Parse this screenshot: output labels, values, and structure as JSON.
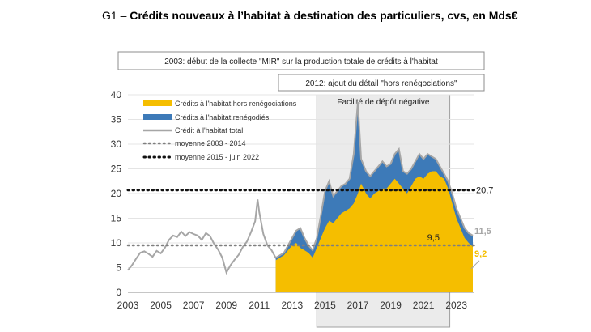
{
  "chart_data": {
    "type": "area",
    "title_prefix": "G1 – ",
    "title_main": "Crédits nouveaux à l’habitat à destination des particuliers, cvs, en Mds€",
    "ylim": [
      0,
      40
    ],
    "yticks": [
      "0",
      "5",
      "10",
      "15",
      "20",
      "25",
      "30",
      "35",
      "40"
    ],
    "xlim": [
      2003,
      2024.1
    ],
    "xticks": [
      "2003",
      "2005",
      "2007",
      "2009",
      "2011",
      "2013",
      "2015",
      "2017",
      "2019",
      "2021",
      "2023"
    ],
    "legend": {
      "hors_reneg": "Crédits à l'habitat hors renégociations",
      "reneg": "Crédits à l'habitat renégodiés",
      "total": "Crédit à l'habitat total",
      "avg1": "moyenne 2003 - 2014",
      "avg2": "moyenne 2015 - juin 2022"
    },
    "annotations": {
      "mir": "2003: début de la collecte \"MIR\" sur la production totale de crédits à l'habitat",
      "detail": "2012: ajout du détail \"hors renégociations\"",
      "facilite": "Facilité de dépôt négative"
    },
    "shade_range": [
      2014.5,
      2022.6
    ],
    "averages": {
      "avg_2003_2014": 9.5,
      "avg_2015_2022": 20.7
    },
    "value_labels": {
      "avg1": "9,5",
      "avg2": "20,7",
      "last_total": "11,5",
      "last_hors": "9,2"
    },
    "colors": {
      "hors": "#f5be00",
      "reneg": "#3d7ab8",
      "total": "#a6a6a6",
      "avg1": "#7f7f7f",
      "avg2": "#111111",
      "last_hors": "#f5be00",
      "last_total": "#a6a6a6"
    },
    "series_total_pre2012": {
      "x": [
        2003.0,
        2003.25,
        2003.5,
        2003.75,
        2004.0,
        2004.25,
        2004.5,
        2004.75,
        2005.0,
        2005.25,
        2005.5,
        2005.75,
        2006.0,
        2006.25,
        2006.5,
        2006.75,
        2007.0,
        2007.25,
        2007.5,
        2007.75,
        2008.0,
        2008.25,
        2008.5,
        2008.75,
        2009.0,
        2009.25,
        2009.5,
        2009.75,
        2010.0,
        2010.25,
        2010.5,
        2010.75,
        2010.9,
        2011.0,
        2011.25,
        2011.5,
        2011.75,
        2012.0
      ],
      "y": [
        4.5,
        5.5,
        6.8,
        8.0,
        8.3,
        7.8,
        7.2,
        8.4,
        7.9,
        9.0,
        10.6,
        11.5,
        11.2,
        12.3,
        11.4,
        12.2,
        11.8,
        11.5,
        10.6,
        12.0,
        11.4,
        9.8,
        8.6,
        7.0,
        4.0,
        5.5,
        6.6,
        7.6,
        9.2,
        10.3,
        12.2,
        14.4,
        18.8,
        16.2,
        11.8,
        9.5,
        8.5,
        7.0
      ]
    },
    "series_stacked": {
      "x": [
        2012.0,
        2012.25,
        2012.5,
        2012.75,
        2013.0,
        2013.25,
        2013.5,
        2013.75,
        2014.0,
        2014.25,
        2014.5,
        2014.75,
        2015.0,
        2015.25,
        2015.5,
        2015.75,
        2016.0,
        2016.25,
        2016.5,
        2016.75,
        2017.0,
        2017.2,
        2017.5,
        2017.75,
        2018.0,
        2018.25,
        2018.5,
        2018.75,
        2019.0,
        2019.25,
        2019.5,
        2019.75,
        2020.0,
        2020.25,
        2020.5,
        2020.75,
        2021.0,
        2021.25,
        2021.5,
        2021.75,
        2022.0,
        2022.25,
        2022.5,
        2022.75,
        2023.0,
        2023.25,
        2023.5,
        2023.75,
        2024.0
      ],
      "hors": [
        6.5,
        7.0,
        7.5,
        8.5,
        9.5,
        10.0,
        9.0,
        8.5,
        8.0,
        7.0,
        9.0,
        11.0,
        13.0,
        14.5,
        14.0,
        15.0,
        16.0,
        16.5,
        17.0,
        18.0,
        20.0,
        22.0,
        20.0,
        19.0,
        20.0,
        20.5,
        21.0,
        21.0,
        22.0,
        23.0,
        22.0,
        21.0,
        20.0,
        21.5,
        23.0,
        23.5,
        23.0,
        24.0,
        24.5,
        24.5,
        23.5,
        23.0,
        21.0,
        18.0,
        15.0,
        13.0,
        11.0,
        10.0,
        9.2
      ],
      "total": [
        7.0,
        7.5,
        8.0,
        9.5,
        11.0,
        12.5,
        13.0,
        11.0,
        9.5,
        8.5,
        11.0,
        15.5,
        20.5,
        22.5,
        19.5,
        20.5,
        21.5,
        22.0,
        23.0,
        28.0,
        38.5,
        27.0,
        24.5,
        23.5,
        24.5,
        25.5,
        26.5,
        25.5,
        26.0,
        28.0,
        29.0,
        24.5,
        24.0,
        25.0,
        26.5,
        28.0,
        27.0,
        28.0,
        27.5,
        27.0,
        25.5,
        24.0,
        22.5,
        20.0,
        17.0,
        15.0,
        13.0,
        12.0,
        11.5
      ]
    }
  }
}
